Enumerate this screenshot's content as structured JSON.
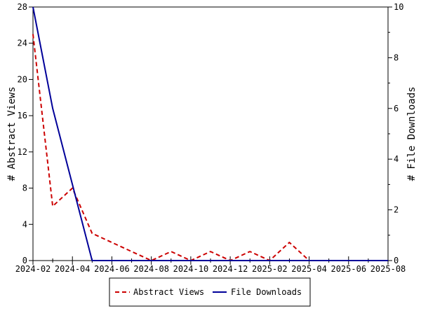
{
  "chart_data": {
    "type": "line",
    "title": "",
    "xlabel": "",
    "x_axis": {
      "type": "date",
      "range": [
        "2024-02",
        "2025-08"
      ],
      "ticks": [
        "2024-02",
        "2024-04",
        "2024-06",
        "2024-08",
        "2024-10",
        "2024-12",
        "2025-02",
        "2025-04",
        "2025-06",
        "2025-08"
      ]
    },
    "y_left": {
      "label": "# Abstract Views",
      "range": [
        0,
        28
      ],
      "ticks": [
        "0",
        "4",
        "8",
        "12",
        "16",
        "20",
        "24",
        "28"
      ]
    },
    "y_right": {
      "label": "# File Downloads",
      "range": [
        0,
        10
      ],
      "ticks": [
        "0",
        "2",
        "4",
        "6",
        "8",
        "10"
      ]
    },
    "grid": false,
    "legend_position": "bottom-center",
    "series": [
      {
        "name": "Abstract Views",
        "axis": "left",
        "color": "#cc0000",
        "style": "dashed",
        "points": [
          {
            "x": "2024-02",
            "y": 25
          },
          {
            "x": "2024-03",
            "y": 6
          },
          {
            "x": "2024-04",
            "y": 8
          },
          {
            "x": "2024-05",
            "y": 3
          },
          {
            "x": "2024-06",
            "y": 2
          },
          {
            "x": "2024-07",
            "y": 1
          },
          {
            "x": "2024-08",
            "y": 0
          },
          {
            "x": "2024-09",
            "y": 1
          },
          {
            "x": "2024-10",
            "y": 0
          },
          {
            "x": "2024-11",
            "y": 1
          },
          {
            "x": "2024-12",
            "y": 0
          },
          {
            "x": "2025-01",
            "y": 1
          },
          {
            "x": "2025-02",
            "y": 0
          },
          {
            "x": "2025-03",
            "y": 2
          },
          {
            "x": "2025-04",
            "y": 0
          },
          {
            "x": "2025-05",
            "y": 0
          },
          {
            "x": "2025-06",
            "y": 0
          },
          {
            "x": "2025-07",
            "y": 0
          },
          {
            "x": "2025-08",
            "y": 0
          }
        ]
      },
      {
        "name": "File Downloads",
        "axis": "right",
        "color": "#000099",
        "style": "solid",
        "points": [
          {
            "x": "2024-02",
            "y": 10
          },
          {
            "x": "2024-03",
            "y": 6
          },
          {
            "x": "2024-04",
            "y": 3
          },
          {
            "x": "2024-05",
            "y": 0
          },
          {
            "x": "2024-06",
            "y": 0
          },
          {
            "x": "2024-07",
            "y": 0
          },
          {
            "x": "2024-08",
            "y": 0
          },
          {
            "x": "2024-09",
            "y": 0
          },
          {
            "x": "2024-10",
            "y": 0
          },
          {
            "x": "2024-11",
            "y": 0
          },
          {
            "x": "2024-12",
            "y": 0
          },
          {
            "x": "2025-01",
            "y": 0
          },
          {
            "x": "2025-02",
            "y": 0
          },
          {
            "x": "2025-03",
            "y": 0
          },
          {
            "x": "2025-04",
            "y": 0
          },
          {
            "x": "2025-05",
            "y": 0
          },
          {
            "x": "2025-06",
            "y": 0
          },
          {
            "x": "2025-07",
            "y": 0
          },
          {
            "x": "2025-08",
            "y": 0
          }
        ]
      }
    ]
  }
}
